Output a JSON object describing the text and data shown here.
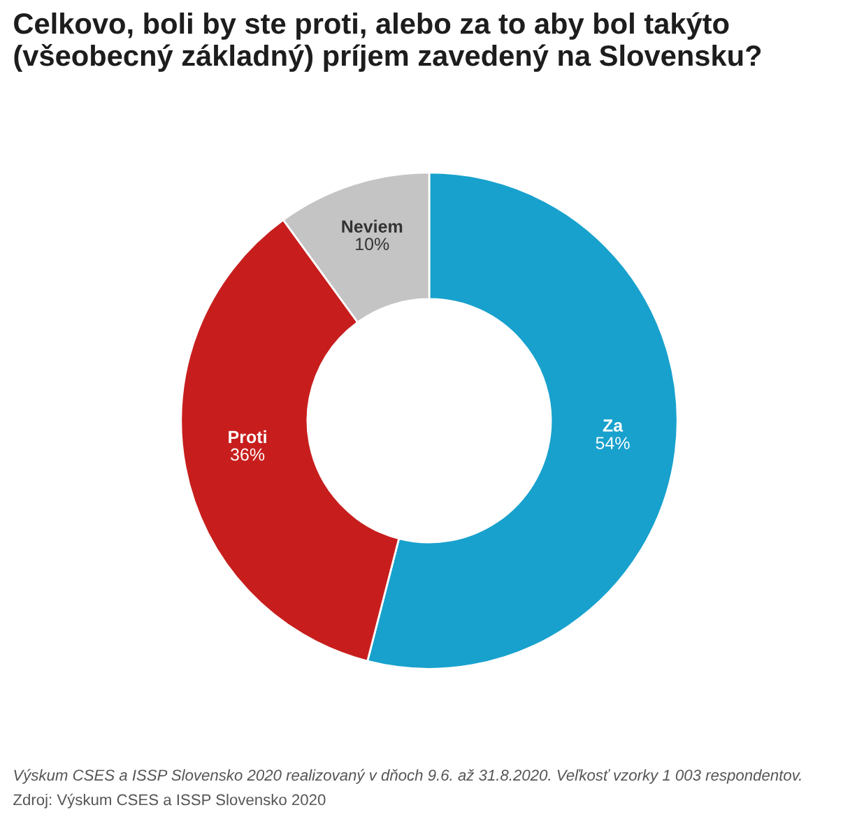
{
  "chart_data": {
    "type": "donut",
    "title": "Celkovo, boli by ste proti, alebo za to aby bol takýto (všeobecný základný) príjem zavedený na Slovensku?",
    "categories": [
      "Za",
      "Proti",
      "Neviem"
    ],
    "values": [
      54,
      36,
      10
    ],
    "value_labels": [
      "54%",
      "36%",
      "10%"
    ],
    "colors": [
      "#18a1cd",
      "#c71e1d",
      "#c4c4c4"
    ],
    "annotations": [
      "Výskum CSES a ISSP Slovensko 2020 realizovaný v dňoch 9.6. až 31.8.2020. Veľkosť vzorky 1 003 respondentov.",
      "Zdroj: Výskum CSES a ISSP Slovensko 2020"
    ]
  }
}
